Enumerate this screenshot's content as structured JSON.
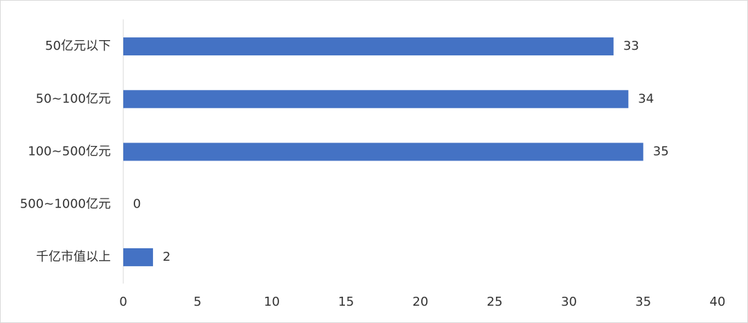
{
  "chart_data": {
    "type": "hbar",
    "categories": [
      "50亿元以下",
      "50~100亿元",
      "100~500亿元",
      "500~1000亿元",
      "千亿市值以上"
    ],
    "values": [
      33,
      34,
      35,
      0,
      2
    ],
    "color": "#4472c4",
    "xlim": [
      0,
      40
    ],
    "xticks": [
      0,
      5,
      10,
      15,
      20,
      25,
      30,
      35,
      40
    ],
    "grid": false
  }
}
